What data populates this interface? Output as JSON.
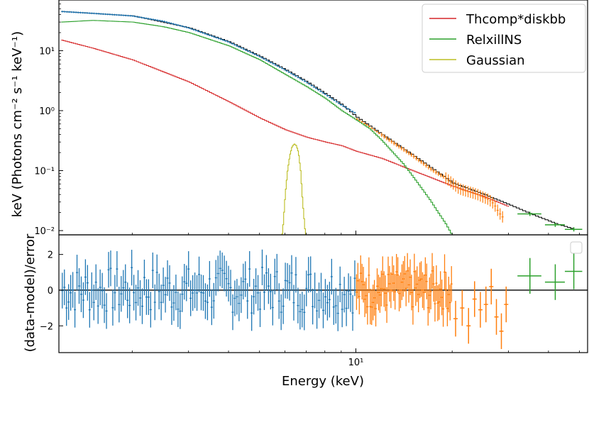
{
  "figure": {
    "colors": {
      "thcomp": "#d62728",
      "relxill": "#2ca02c",
      "gaussian": "#bcbd22",
      "data1": "#1f77b4",
      "data2": "#ff7f0e",
      "data3": "#2ca02c",
      "total_model": "#000000"
    }
  },
  "chart_data": [
    {
      "type": "line",
      "panel": "spectrum",
      "ylabel": "keV (Photons cm⁻² s⁻¹ keV⁻¹)",
      "xscale": "log",
      "yscale": "log",
      "xlim": [
        1.18,
        53
      ],
      "ylim": [
        0.0085,
        70
      ],
      "grid": false,
      "legend_position": "top-right",
      "y_ticks": [
        {
          "value": 10,
          "label": "10¹"
        },
        {
          "value": 1,
          "label": "10⁰"
        },
        {
          "value": 0.1,
          "label": "10⁻¹"
        },
        {
          "value": 0.01,
          "label": "10⁻²"
        }
      ],
      "series": [
        {
          "name": "Thcomp*diskbb",
          "kind": "model",
          "color": "#d62728",
          "x": [
            1.2,
            1.5,
            2.0,
            3.0,
            4.0,
            5.0,
            6.0,
            7.0,
            8.0,
            9.0,
            10.0,
            12.0,
            15.0,
            20.0,
            25.0,
            30.0
          ],
          "y": [
            15.0,
            11.0,
            7.0,
            3.0,
            1.4,
            0.75,
            0.48,
            0.36,
            0.3,
            0.26,
            0.21,
            0.16,
            0.1,
            0.055,
            0.037,
            0.025
          ]
        },
        {
          "name": "RelxillNS",
          "kind": "model",
          "color": "#2ca02c",
          "x": [
            1.2,
            1.5,
            2.0,
            2.5,
            3.0,
            4.0,
            5.0,
            6.0,
            7.0,
            8.0,
            9.0,
            10.0,
            11.0,
            12.0,
            13.0,
            14.0,
            15.0,
            16.0,
            17.0,
            18.0,
            19.0,
            20.0
          ],
          "y": [
            30.0,
            32.0,
            30.0,
            25.0,
            20.0,
            12.0,
            7.0,
            4.0,
            2.5,
            1.6,
            1.0,
            0.7,
            0.5,
            0.32,
            0.2,
            0.13,
            0.08,
            0.05,
            0.032,
            0.02,
            0.013,
            0.008
          ]
        },
        {
          "name": "Gaussian",
          "kind": "model",
          "color": "#bcbd22",
          "x": [
            5.8,
            5.9,
            6.0,
            6.1,
            6.2,
            6.3,
            6.4,
            6.5,
            6.6,
            6.7,
            6.8,
            6.9,
            7.0
          ],
          "y": [
            0.005,
            0.011,
            0.04,
            0.1,
            0.18,
            0.25,
            0.28,
            0.26,
            0.2,
            0.1,
            0.03,
            0.012,
            0.005
          ]
        },
        {
          "name": "",
          "kind": "total",
          "color": "#000000",
          "x": [
            1.2,
            2.0,
            3.0,
            4.0,
            5.0,
            6.0,
            7.0,
            8.0,
            9.0,
            10.0,
            12.0,
            15.0,
            20.0,
            25.0,
            30.0,
            35.0,
            42.0,
            48.0
          ],
          "y": [
            45.0,
            38.0,
            24.0,
            14.0,
            8.0,
            4.8,
            3.0,
            1.9,
            1.25,
            0.78,
            0.4,
            0.18,
            0.062,
            0.04,
            0.027,
            0.019,
            0.013,
            0.0105
          ]
        },
        {
          "name": "",
          "kind": "data",
          "color": "#1f77b4",
          "x": [
            1.2,
            1.5,
            2.0,
            2.5,
            3.0,
            4.0,
            5.0,
            6.0,
            7.0,
            8.0,
            9.0,
            10.0
          ],
          "y": [
            45.0,
            42.0,
            38.0,
            31.0,
            24.0,
            14.0,
            8.0,
            4.8,
            3.0,
            1.9,
            1.25,
            0.9
          ]
        },
        {
          "name": "",
          "kind": "data",
          "color": "#ff7f0e",
          "x": [
            10.0,
            11.0,
            12.0,
            13.0,
            14.0,
            15.0,
            16.0,
            17.0,
            18.0,
            19.0,
            20.0,
            21.0,
            22.0,
            23.0,
            24.0,
            25.0,
            26.0,
            27.0,
            28.0,
            29.0
          ],
          "y": [
            0.75,
            0.55,
            0.4,
            0.3,
            0.23,
            0.18,
            0.14,
            0.11,
            0.09,
            0.077,
            0.062,
            0.05,
            0.046,
            0.043,
            0.04,
            0.036,
            0.033,
            0.028,
            0.02,
            0.016
          ]
        },
        {
          "name": "",
          "kind": "data",
          "color": "#2ca02c",
          "x": [
            35.0,
            42.0,
            48.0
          ],
          "y": [
            0.019,
            0.0125,
            0.0105
          ],
          "xerr": [
            3.0,
            3.0,
            3.0
          ]
        }
      ]
    },
    {
      "type": "scatter",
      "panel": "residuals",
      "xlabel": "Energy (keV)",
      "ylabel": "(data-model)/error",
      "xscale": "log",
      "xlim": [
        1.18,
        53
      ],
      "ylim": [
        -3.5,
        3.1
      ],
      "zero_line": 0,
      "x_ticks": [
        {
          "value": 10,
          "label": "10¹"
        }
      ],
      "y_ticks": [
        {
          "value": 2,
          "label": "2"
        },
        {
          "value": 0,
          "label": "0"
        },
        {
          "value": -2,
          "label": "−2"
        }
      ],
      "legend": "empty",
      "series": [
        {
          "name": "",
          "color": "#1f77b4",
          "x_range": [
            1.2,
            10.0
          ],
          "n_points": 140,
          "err": 1.0,
          "spread": 1.3
        },
        {
          "name": "",
          "color": "#ff7f0e",
          "x_range": [
            10.0,
            20.0
          ],
          "n_points": 70,
          "err": 1.0,
          "spread": 1.1
        },
        {
          "name": "",
          "color": "#ff7f0e",
          "x": [
            20.5,
            21.5,
            22.5,
            23.5,
            24.5,
            25.5,
            26.5,
            27.5,
            28.5,
            29.5
          ],
          "y": [
            -1.6,
            -1.0,
            -2.0,
            -0.5,
            -1.1,
            -0.8,
            0.2,
            -1.5,
            -2.3,
            -0.8
          ],
          "err": 1.0
        },
        {
          "name": "",
          "color": "#2ca02c",
          "x": [
            35.0,
            42.0,
            48.0
          ],
          "y": [
            0.8,
            0.45,
            1.05
          ],
          "err": 1.0,
          "xerr": 3.0
        }
      ]
    }
  ]
}
